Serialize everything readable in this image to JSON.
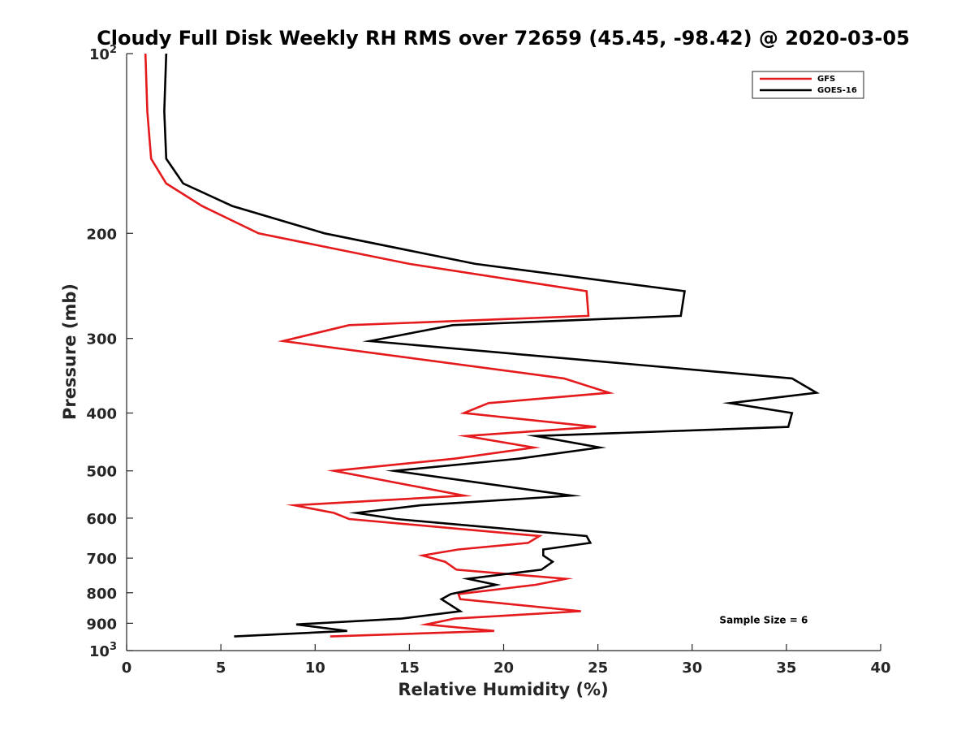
{
  "chart_data": {
    "type": "line",
    "title": "Cloudy Full Disk Weekly RH RMS over 72659 (45.45, -98.42) @ 2020-03-05",
    "xlabel": "Relative Humidity (%)",
    "ylabel": "Pressure (mb)",
    "xlim": [
      0,
      40
    ],
    "ylim": [
      1000,
      100
    ],
    "yscale": "log",
    "x_ticks": [
      0,
      5,
      10,
      15,
      20,
      25,
      30,
      35,
      40
    ],
    "y_ticks": [
      {
        "value": 100,
        "label": "10",
        "sup": "2"
      },
      {
        "value": 200,
        "label": "200"
      },
      {
        "value": 300,
        "label": "300"
      },
      {
        "value": 400,
        "label": "400"
      },
      {
        "value": 500,
        "label": "500"
      },
      {
        "value": 600,
        "label": "600"
      },
      {
        "value": 700,
        "label": "700"
      },
      {
        "value": 800,
        "label": "800"
      },
      {
        "value": 900,
        "label": "900"
      },
      {
        "value": 1000,
        "label": "10",
        "sup": "3"
      }
    ],
    "grid": false,
    "legend_position": "top-right",
    "series": [
      {
        "name": "GFS",
        "color": "#e41a1c",
        "points": [
          [
            1.0,
            100
          ],
          [
            1.1,
            125
          ],
          [
            1.3,
            150
          ],
          [
            2.1,
            165
          ],
          [
            4.0,
            180
          ],
          [
            7.0,
            200
          ],
          [
            15.0,
            225
          ],
          [
            24.4,
            250
          ],
          [
            24.5,
            275
          ],
          [
            11.8,
            285
          ],
          [
            8.3,
            303
          ],
          [
            23.2,
            350
          ],
          [
            25.6,
            370
          ],
          [
            19.2,
            385
          ],
          [
            17.9,
            400
          ],
          [
            24.9,
            422
          ],
          [
            18.0,
            437
          ],
          [
            21.6,
            457
          ],
          [
            17.4,
            477
          ],
          [
            11.0,
            500
          ],
          [
            17.9,
            550
          ],
          [
            8.9,
            571
          ],
          [
            11.0,
            588
          ],
          [
            11.8,
            602
          ],
          [
            21.9,
            643
          ],
          [
            21.3,
            660
          ],
          [
            17.6,
            677
          ],
          [
            15.7,
            693
          ],
          [
            16.9,
            710
          ],
          [
            17.5,
            732
          ],
          [
            23.3,
            758
          ],
          [
            21.7,
            776
          ],
          [
            17.6,
            804
          ],
          [
            17.7,
            820
          ],
          [
            24.1,
            859
          ],
          [
            17.4,
            884
          ],
          [
            15.9,
            904
          ],
          [
            19.5,
            927
          ],
          [
            10.8,
            947
          ]
        ]
      },
      {
        "name": "GOES-16",
        "color": "#000000",
        "points": [
          [
            2.1,
            100
          ],
          [
            2.0,
            125
          ],
          [
            2.1,
            150
          ],
          [
            3.0,
            165
          ],
          [
            5.6,
            180
          ],
          [
            10.5,
            200
          ],
          [
            18.5,
            225
          ],
          [
            29.6,
            250
          ],
          [
            29.4,
            275
          ],
          [
            17.3,
            285
          ],
          [
            12.9,
            303
          ],
          [
            35.3,
            350
          ],
          [
            36.6,
            370
          ],
          [
            32.0,
            385
          ],
          [
            35.3,
            400
          ],
          [
            35.1,
            422
          ],
          [
            21.7,
            437
          ],
          [
            25.1,
            457
          ],
          [
            20.8,
            477
          ],
          [
            14.2,
            500
          ],
          [
            23.6,
            550
          ],
          [
            15.6,
            571
          ],
          [
            12.2,
            588
          ],
          [
            14.3,
            602
          ],
          [
            24.4,
            643
          ],
          [
            24.6,
            660
          ],
          [
            22.1,
            677
          ],
          [
            22.1,
            693
          ],
          [
            22.6,
            710
          ],
          [
            22.0,
            732
          ],
          [
            18.1,
            758
          ],
          [
            19.6,
            776
          ],
          [
            17.2,
            804
          ],
          [
            16.7,
            820
          ],
          [
            17.7,
            859
          ],
          [
            14.6,
            884
          ],
          [
            9.0,
            904
          ],
          [
            11.7,
            927
          ],
          [
            5.7,
            947
          ]
        ]
      }
    ],
    "annotations": [
      {
        "text": "Sample Size = 6",
        "x": 35,
        "y": 900
      }
    ]
  }
}
